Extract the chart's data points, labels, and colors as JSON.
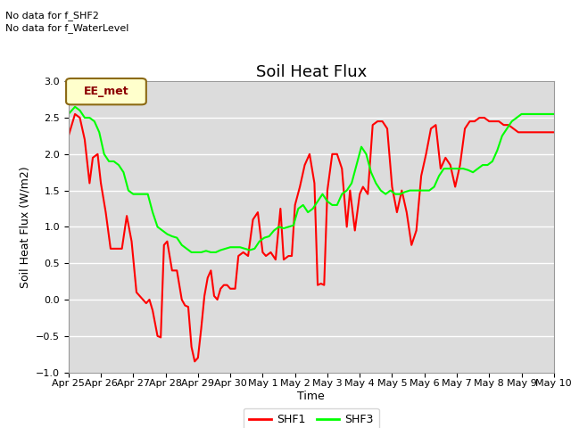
{
  "title": "Soil Heat Flux",
  "ylabel": "Soil Heat Flux (W/m2)",
  "xlabel": "Time",
  "ylim": [
    -1.0,
    3.0
  ],
  "yticks": [
    -1.0,
    -0.5,
    0.0,
    0.5,
    1.0,
    1.5,
    2.0,
    2.5,
    3.0
  ],
  "xtick_labels": [
    "Apr 25",
    "Apr 26",
    "Apr 27",
    "Apr 28",
    "Apr 29",
    "Apr 30",
    "May 1",
    "May 2",
    "May 3",
    "May 4",
    "May 5",
    "May 6",
    "May 7",
    "May 8",
    "May 9",
    "May 10"
  ],
  "annotations_line1": "No data for f_SHF2",
  "annotations_line2": "No data for f_WaterLevel",
  "legend_box_label": "EE_met",
  "legend_box_color": "#ffffcc",
  "legend_box_border": "#8B6914",
  "background_color": "#dcdcdc",
  "plot_bg_color": "#dcdcdc",
  "shf1_color": "#ff0000",
  "shf3_color": "#00ff00",
  "shf1_linewidth": 1.5,
  "shf3_linewidth": 1.5,
  "title_fontsize": 13,
  "axis_label_fontsize": 9,
  "tick_fontsize": 8,
  "annotation_fontsize": 8,
  "shf1_x": [
    0,
    0.2,
    0.35,
    0.5,
    0.65,
    0.75,
    0.9,
    1.0,
    1.15,
    1.3,
    1.5,
    1.65,
    1.8,
    1.95,
    2.1,
    2.2,
    2.3,
    2.4,
    2.5,
    2.6,
    2.75,
    2.85,
    2.95,
    3.05,
    3.2,
    3.35,
    3.5,
    3.6,
    3.7,
    3.8,
    3.9,
    4.0,
    4.1,
    4.2,
    4.3,
    4.4,
    4.5,
    4.6,
    4.7,
    4.8,
    4.9,
    5.0,
    5.15,
    5.25,
    5.4,
    5.55,
    5.7,
    5.85,
    6.0,
    6.1,
    6.25,
    6.4,
    6.55,
    6.65,
    6.8,
    6.9,
    7.0,
    7.15,
    7.3,
    7.45,
    7.6,
    7.7,
    7.8,
    7.9,
    8.0,
    8.15,
    8.3,
    8.45,
    8.6,
    8.7,
    8.85,
    9.0,
    9.1,
    9.25,
    9.4,
    9.55,
    9.7,
    9.85,
    10.0,
    10.15,
    10.3,
    10.45,
    10.6,
    10.75,
    10.9,
    11.05,
    11.2,
    11.35,
    11.5,
    11.65,
    11.8,
    11.95,
    12.1,
    12.25,
    12.4,
    12.55,
    12.7,
    12.85,
    13.0,
    13.15,
    13.3,
    13.45,
    13.6,
    13.75,
    13.9,
    14.05,
    14.2,
    14.35,
    14.5,
    14.65,
    14.8,
    14.95,
    15.0
  ],
  "shf1_y": [
    2.25,
    2.55,
    2.5,
    2.2,
    1.6,
    1.95,
    2.0,
    1.6,
    1.2,
    0.7,
    0.7,
    0.7,
    1.15,
    0.8,
    0.1,
    0.05,
    0.0,
    -0.05,
    0.0,
    -0.15,
    -0.5,
    -0.52,
    0.75,
    0.8,
    0.4,
    0.4,
    0.0,
    -0.08,
    -0.1,
    -0.65,
    -0.85,
    -0.8,
    -0.4,
    0.05,
    0.3,
    0.4,
    0.05,
    0.0,
    0.15,
    0.2,
    0.2,
    0.15,
    0.15,
    0.6,
    0.65,
    0.6,
    1.1,
    1.2,
    0.65,
    0.6,
    0.65,
    0.55,
    1.25,
    0.55,
    0.6,
    0.6,
    1.3,
    1.55,
    1.85,
    2.0,
    1.6,
    0.2,
    0.22,
    0.2,
    1.5,
    2.0,
    2.0,
    1.8,
    1.0,
    1.5,
    0.95,
    1.45,
    1.55,
    1.45,
    2.4,
    2.45,
    2.45,
    2.35,
    1.55,
    1.2,
    1.5,
    1.2,
    0.75,
    0.95,
    1.7,
    2.0,
    2.35,
    2.4,
    1.8,
    1.95,
    1.85,
    1.55,
    1.85,
    2.35,
    2.45,
    2.45,
    2.5,
    2.5,
    2.45,
    2.45,
    2.45,
    2.4,
    2.4,
    2.35,
    2.3,
    2.3,
    2.3,
    2.3,
    2.3,
    2.3,
    2.3,
    2.3,
    2.3
  ],
  "shf3_x": [
    0,
    0.2,
    0.35,
    0.5,
    0.65,
    0.8,
    0.95,
    1.1,
    1.25,
    1.4,
    1.55,
    1.7,
    1.85,
    2.0,
    2.15,
    2.3,
    2.45,
    2.6,
    2.75,
    2.9,
    3.05,
    3.2,
    3.35,
    3.5,
    3.65,
    3.8,
    3.95,
    4.1,
    4.25,
    4.4,
    4.55,
    4.7,
    4.85,
    5.0,
    5.15,
    5.3,
    5.45,
    5.6,
    5.75,
    5.9,
    6.05,
    6.2,
    6.35,
    6.5,
    6.65,
    6.8,
    6.95,
    7.1,
    7.25,
    7.4,
    7.55,
    7.7,
    7.85,
    8.0,
    8.15,
    8.3,
    8.45,
    8.6,
    8.75,
    8.9,
    9.05,
    9.2,
    9.35,
    9.5,
    9.65,
    9.8,
    9.95,
    10.1,
    10.25,
    10.4,
    10.55,
    10.7,
    10.85,
    11.0,
    11.15,
    11.3,
    11.45,
    11.6,
    11.75,
    11.9,
    12.05,
    12.2,
    12.35,
    12.5,
    12.65,
    12.8,
    12.95,
    13.1,
    13.25,
    13.4,
    13.55,
    13.7,
    13.85,
    14.0,
    14.15,
    14.3,
    14.45,
    14.6,
    14.75,
    14.9,
    15.0
  ],
  "shf3_y": [
    2.55,
    2.65,
    2.6,
    2.5,
    2.5,
    2.45,
    2.3,
    2.0,
    1.9,
    1.9,
    1.85,
    1.75,
    1.5,
    1.45,
    1.45,
    1.45,
    1.45,
    1.2,
    1.0,
    0.95,
    0.9,
    0.87,
    0.85,
    0.75,
    0.7,
    0.65,
    0.65,
    0.65,
    0.67,
    0.65,
    0.65,
    0.68,
    0.7,
    0.72,
    0.72,
    0.72,
    0.7,
    0.68,
    0.7,
    0.8,
    0.85,
    0.87,
    0.95,
    1.0,
    0.98,
    1.0,
    1.02,
    1.25,
    1.3,
    1.2,
    1.25,
    1.35,
    1.45,
    1.35,
    1.3,
    1.3,
    1.45,
    1.5,
    1.6,
    1.85,
    2.1,
    2.0,
    1.75,
    1.6,
    1.5,
    1.45,
    1.5,
    1.45,
    1.45,
    1.48,
    1.5,
    1.5,
    1.5,
    1.5,
    1.5,
    1.55,
    1.7,
    1.8,
    1.8,
    1.8,
    1.8,
    1.8,
    1.78,
    1.75,
    1.8,
    1.85,
    1.85,
    1.9,
    2.05,
    2.25,
    2.35,
    2.45,
    2.5,
    2.55,
    2.55,
    2.55,
    2.55,
    2.55,
    2.55,
    2.55,
    2.55
  ]
}
